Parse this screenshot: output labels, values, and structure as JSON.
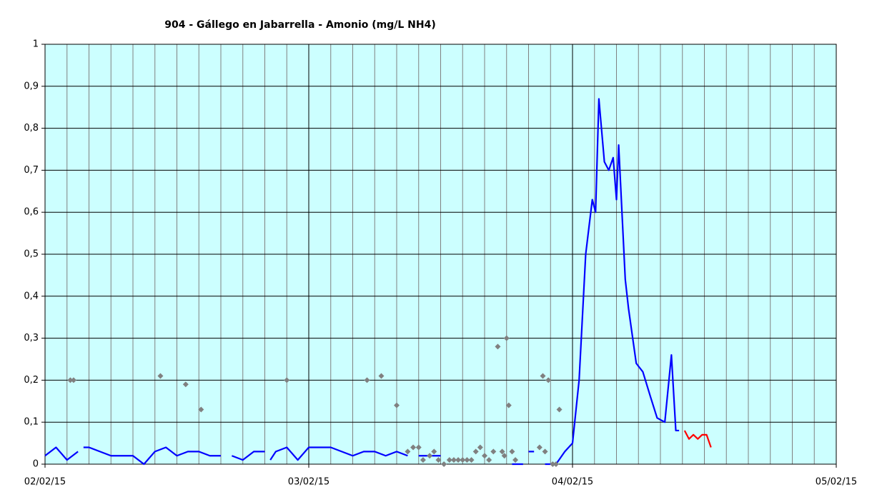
{
  "chart_data": {
    "type": "line",
    "title": "904 - Gállego en Jabarrella - Amonio (mg/L NH4)",
    "xlim": [
      0,
      72
    ],
    "xticks": [
      {
        "value": 0,
        "label": "02/02/15"
      },
      {
        "value": 24,
        "label": "03/02/15"
      },
      {
        "value": 48,
        "label": "04/02/15"
      },
      {
        "value": 72,
        "label": "05/02/15"
      }
    ],
    "ylim": [
      0,
      1
    ],
    "yticks": [
      0,
      {
        "value": 0.1,
        "label": "0,1"
      },
      {
        "value": 0.2,
        "label": "0,2"
      },
      {
        "value": 0.3,
        "label": "0,3"
      },
      {
        "value": 0.4,
        "label": "0,4"
      },
      {
        "value": 0.5,
        "label": "0,5"
      },
      {
        "value": 0.6,
        "label": "0,6"
      },
      {
        "value": 0.7,
        "label": "0,7"
      },
      {
        "value": 0.8,
        "label": "0,8"
      },
      {
        "value": 0.9,
        "label": "0,9"
      },
      1
    ],
    "grid": true,
    "background": "#ccffff",
    "series": [
      {
        "type": "line",
        "color": "#0000ff",
        "x": [
          0,
          1,
          2,
          3,
          3.2,
          3.5,
          4,
          5,
          6,
          7,
          8,
          9,
          10,
          11,
          12,
          13,
          14,
          15,
          16,
          16.5,
          17,
          18,
          19,
          20,
          20.2,
          20.5,
          21,
          22,
          23,
          24,
          25,
          26,
          27,
          28,
          29,
          30,
          31,
          32,
          33,
          33.5,
          34,
          35,
          36,
          36.5,
          39,
          39.5,
          42.5,
          43.5,
          43.8,
          44,
          44.5,
          45,
          45.5,
          46.5,
          47.3,
          48,
          48.6,
          49.2,
          49.8,
          50.1,
          50.4,
          50.9,
          51.3,
          51.7,
          52,
          52.2,
          52.5,
          52.8,
          53.1,
          53.8,
          54.4,
          55.1,
          55.7,
          56.4,
          57,
          57.4,
          57.7
        ],
        "values": [
          0.02,
          0.04,
          0.01,
          0.03,
          null,
          0.04,
          0.04,
          0.03,
          0.02,
          0.02,
          0.02,
          0.0,
          0.03,
          0.04,
          0.02,
          0.03,
          0.03,
          0.02,
          0.02,
          null,
          0.02,
          0.01,
          0.03,
          0.03,
          null,
          0.01,
          0.03,
          0.04,
          0.01,
          0.04,
          0.04,
          0.04,
          0.03,
          0.02,
          0.03,
          0.03,
          0.02,
          0.03,
          0.02,
          null,
          0.02,
          0.02,
          0.02,
          null,
          0.02,
          null,
          0.0,
          0.0,
          null,
          0.03,
          0.03,
          null,
          0.0,
          0.0,
          0.03,
          0.05,
          0.2,
          0.5,
          0.63,
          0.6,
          0.87,
          0.72,
          0.7,
          0.73,
          0.63,
          0.76,
          0.6,
          0.44,
          0.37,
          0.24,
          0.22,
          0.16,
          0.11,
          0.1,
          0.26,
          0.08,
          0.08
        ]
      },
      {
        "type": "scatter",
        "color": "#808080",
        "x": [
          2.3,
          2.6,
          10.5,
          12.8,
          14.2,
          22,
          29.3,
          30.6,
          32,
          33,
          33.5,
          34,
          34.4,
          35,
          35.4,
          35.8,
          36.3,
          36.8,
          37.2,
          37.6,
          38,
          38.4,
          38.8,
          39.2,
          39.6,
          40,
          40.4,
          40.8,
          41.2,
          41.6,
          41.8,
          42,
          42.2,
          42.5,
          42.8,
          45,
          45.3,
          45.5,
          45.8,
          46.2,
          46.5,
          46.8
        ],
        "values": [
          0.2,
          0.2,
          0.21,
          0.19,
          0.13,
          0.2,
          0.2,
          0.21,
          0.14,
          0.03,
          0.04,
          0.04,
          0.01,
          0.02,
          0.03,
          0.01,
          0.0,
          0.01,
          0.01,
          0.01,
          0.01,
          0.01,
          0.01,
          0.03,
          0.04,
          0.02,
          0.01,
          0.03,
          0.28,
          0.03,
          0.02,
          0.3,
          0.14,
          0.03,
          0.01,
          0.04,
          0.21,
          0.03,
          0.2,
          0.0,
          0.0,
          0.13
        ]
      },
      {
        "type": "line",
        "color": "#ff0000",
        "x": [
          58.2,
          58.6,
          59,
          59.4,
          59.8,
          60.2,
          60.6
        ],
        "values": [
          0.08,
          0.06,
          0.07,
          0.06,
          0.07,
          0.07,
          0.04
        ]
      }
    ]
  }
}
